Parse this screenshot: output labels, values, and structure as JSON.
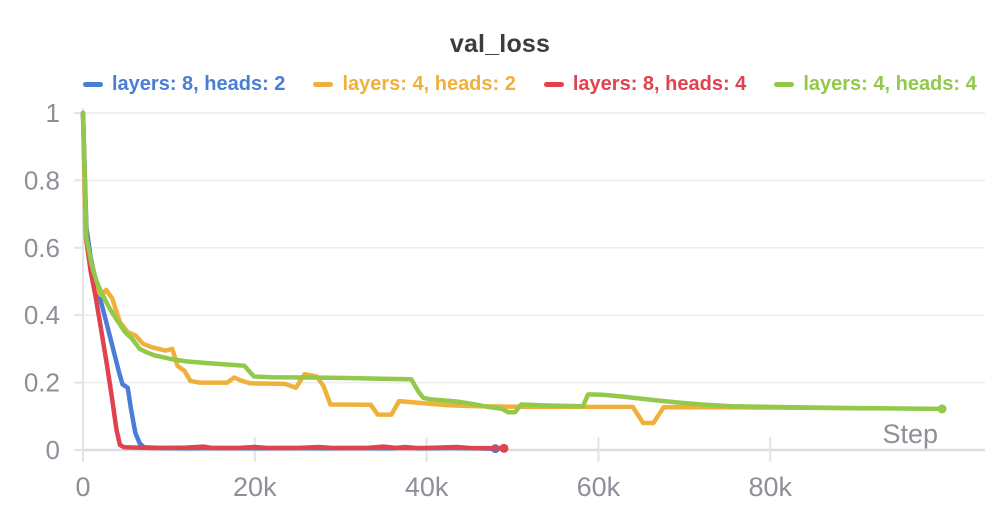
{
  "chart_data": {
    "type": "line",
    "title": "val_loss",
    "xlabel": "Step",
    "ylabel": "",
    "xlim": [
      0,
      105000
    ],
    "ylim": [
      0,
      1
    ],
    "grid": "horizontal",
    "legend_position": "top",
    "x_ticks": [
      {
        "value": 0,
        "label": "0"
      },
      {
        "value": 20000,
        "label": "20k"
      },
      {
        "value": 40000,
        "label": "40k"
      },
      {
        "value": 60000,
        "label": "60k"
      },
      {
        "value": 80000,
        "label": "80k"
      }
    ],
    "y_ticks": [
      {
        "value": 0,
        "label": "0"
      },
      {
        "value": 0.2,
        "label": "0.2"
      },
      {
        "value": 0.4,
        "label": "0.4"
      },
      {
        "value": 0.6,
        "label": "0.6"
      },
      {
        "value": 0.8,
        "label": "0.8"
      },
      {
        "value": 1,
        "label": "1"
      }
    ],
    "series": [
      {
        "name": "layers: 8, heads: 2",
        "color": "#4a7dd6",
        "end_dot": true,
        "points": [
          [
            0,
            1.0
          ],
          [
            400,
            0.66
          ],
          [
            900,
            0.57
          ],
          [
            1500,
            0.5
          ],
          [
            2100,
            0.44
          ],
          [
            2800,
            0.37
          ],
          [
            3500,
            0.3
          ],
          [
            4200,
            0.23
          ],
          [
            4600,
            0.195
          ],
          [
            5200,
            0.185
          ],
          [
            5600,
            0.12
          ],
          [
            6100,
            0.05
          ],
          [
            6600,
            0.02
          ],
          [
            7100,
            0.008
          ],
          [
            9000,
            0.006
          ],
          [
            12000,
            0.005
          ],
          [
            16000,
            0.006
          ],
          [
            20000,
            0.005
          ],
          [
            24000,
            0.006
          ],
          [
            28000,
            0.005
          ],
          [
            32000,
            0.006
          ],
          [
            36000,
            0.005
          ],
          [
            37500,
            0.009
          ],
          [
            39000,
            0.005
          ],
          [
            43000,
            0.006
          ],
          [
            46000,
            0.005
          ],
          [
            48000,
            0.004
          ]
        ]
      },
      {
        "name": "layers: 4, heads: 2",
        "color": "#f0b13c",
        "end_dot": false,
        "points": [
          [
            0,
            1.0
          ],
          [
            300,
            0.63
          ],
          [
            900,
            0.56
          ],
          [
            1600,
            0.48
          ],
          [
            2100,
            0.46
          ],
          [
            2700,
            0.475
          ],
          [
            3400,
            0.45
          ],
          [
            4300,
            0.38
          ],
          [
            5200,
            0.35
          ],
          [
            6100,
            0.34
          ],
          [
            7000,
            0.315
          ],
          [
            8000,
            0.305
          ],
          [
            8800,
            0.3
          ],
          [
            9600,
            0.295
          ],
          [
            10400,
            0.3
          ],
          [
            11000,
            0.25
          ],
          [
            11800,
            0.235
          ],
          [
            12500,
            0.205
          ],
          [
            13500,
            0.2
          ],
          [
            16800,
            0.2
          ],
          [
            17600,
            0.215
          ],
          [
            18500,
            0.205
          ],
          [
            19500,
            0.198
          ],
          [
            23500,
            0.196
          ],
          [
            24800,
            0.185
          ],
          [
            25800,
            0.225
          ],
          [
            27200,
            0.218
          ],
          [
            28000,
            0.19
          ],
          [
            28800,
            0.135
          ],
          [
            33500,
            0.134
          ],
          [
            34300,
            0.105
          ],
          [
            35900,
            0.105
          ],
          [
            36800,
            0.145
          ],
          [
            39000,
            0.14
          ],
          [
            42500,
            0.133
          ],
          [
            46000,
            0.13
          ],
          [
            52000,
            0.128
          ],
          [
            58000,
            0.128
          ],
          [
            64000,
            0.128
          ],
          [
            65200,
            0.08
          ],
          [
            66400,
            0.08
          ],
          [
            67600,
            0.127
          ],
          [
            72000,
            0.127
          ],
          [
            78000,
            0.126
          ],
          [
            85000,
            0.125
          ],
          [
            93000,
            0.124
          ]
        ]
      },
      {
        "name": "layers: 8, heads: 4",
        "color": "#e0424e",
        "end_dot": true,
        "points": [
          [
            0,
            1.0
          ],
          [
            400,
            0.62
          ],
          [
            900,
            0.53
          ],
          [
            1500,
            0.45
          ],
          [
            2100,
            0.36
          ],
          [
            2800,
            0.25
          ],
          [
            3400,
            0.15
          ],
          [
            3900,
            0.06
          ],
          [
            4300,
            0.015
          ],
          [
            4800,
            0.008
          ],
          [
            8000,
            0.006
          ],
          [
            12000,
            0.007
          ],
          [
            14000,
            0.01
          ],
          [
            15000,
            0.006
          ],
          [
            18000,
            0.006
          ],
          [
            20000,
            0.009
          ],
          [
            21500,
            0.006
          ],
          [
            25000,
            0.006
          ],
          [
            27500,
            0.009
          ],
          [
            29000,
            0.006
          ],
          [
            33000,
            0.006
          ],
          [
            35000,
            0.01
          ],
          [
            36500,
            0.006
          ],
          [
            40000,
            0.006
          ],
          [
            43500,
            0.009
          ],
          [
            45000,
            0.006
          ],
          [
            49000,
            0.005
          ]
        ]
      },
      {
        "name": "layers: 4, heads: 4",
        "color": "#92c94a",
        "end_dot": true,
        "points": [
          [
            0,
            1.0
          ],
          [
            400,
            0.63
          ],
          [
            1000,
            0.55
          ],
          [
            1600,
            0.5
          ],
          [
            2100,
            0.47
          ],
          [
            3100,
            0.42
          ],
          [
            4100,
            0.38
          ],
          [
            4900,
            0.35
          ],
          [
            5700,
            0.33
          ],
          [
            6600,
            0.3
          ],
          [
            7400,
            0.29
          ],
          [
            8400,
            0.28
          ],
          [
            9400,
            0.275
          ],
          [
            10200,
            0.27
          ],
          [
            12000,
            0.263
          ],
          [
            14500,
            0.258
          ],
          [
            16500,
            0.254
          ],
          [
            18800,
            0.25
          ],
          [
            19300,
            0.235
          ],
          [
            19900,
            0.218
          ],
          [
            22000,
            0.216
          ],
          [
            26000,
            0.215
          ],
          [
            30000,
            0.214
          ],
          [
            34000,
            0.212
          ],
          [
            38200,
            0.21
          ],
          [
            39000,
            0.175
          ],
          [
            39600,
            0.155
          ],
          [
            40500,
            0.15
          ],
          [
            43500,
            0.144
          ],
          [
            45500,
            0.136
          ],
          [
            47200,
            0.128
          ],
          [
            48800,
            0.122
          ],
          [
            49500,
            0.112
          ],
          [
            50300,
            0.112
          ],
          [
            51000,
            0.135
          ],
          [
            54000,
            0.132
          ],
          [
            58200,
            0.13
          ],
          [
            58800,
            0.165
          ],
          [
            60500,
            0.164
          ],
          [
            63000,
            0.158
          ],
          [
            66500,
            0.148
          ],
          [
            69500,
            0.14
          ],
          [
            72000,
            0.135
          ],
          [
            75500,
            0.13
          ],
          [
            80000,
            0.128
          ],
          [
            85000,
            0.126
          ],
          [
            90000,
            0.124
          ],
          [
            95000,
            0.123
          ],
          [
            100000,
            0.122
          ]
        ]
      }
    ],
    "style": {
      "grid_color": "#ececf1",
      "zero_line_color": "#dcdce3",
      "axis_color": "#e3e3e9",
      "tick_label_color": "#8f8f99",
      "title_color": "#3b3b41",
      "line_width": 4.5
    }
  }
}
